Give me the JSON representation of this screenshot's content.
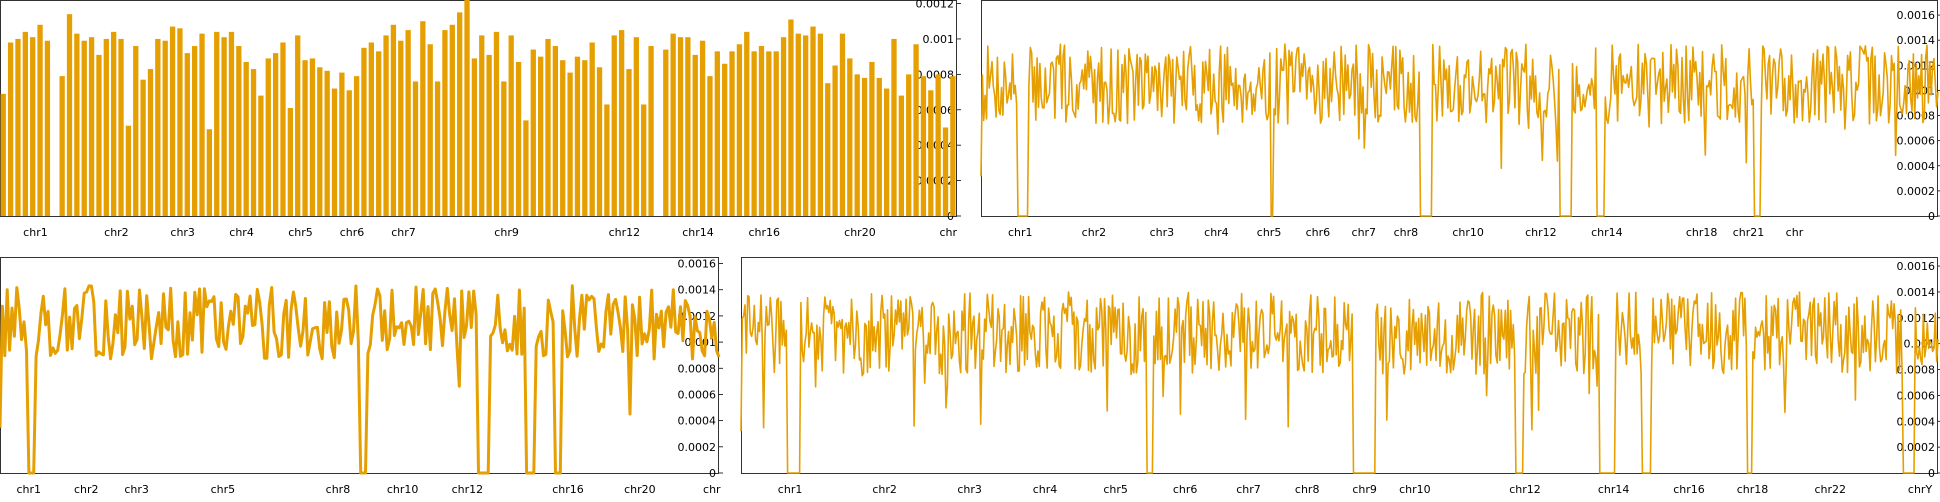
{
  "chart_data": [
    {
      "id": "panel-top-left",
      "type": "bar",
      "color": "#e69f00",
      "ylim": [
        0,
        0.00122
      ],
      "y_ticks": [
        "0",
        "0.0002",
        "0.0004",
        "0.0006",
        "0.0008",
        "0.001",
        "0.0012"
      ],
      "y_tick_values": [
        0,
        0.0002,
        0.0004,
        0.0006,
        0.0008,
        0.001,
        0.0012
      ],
      "x_labels": [
        "chr1",
        "chr2",
        "chr3",
        "chr4",
        "chr5",
        "chr6",
        "chr7",
        "chr9",
        "chr12",
        "chr14",
        "chr16",
        "chr20",
        "chr"
      ],
      "x_label_positions": [
        4,
        15,
        24,
        32,
        40,
        47,
        54,
        68,
        84,
        94,
        103,
        116,
        128
      ],
      "n_points": 130,
      "values": [
        0.00069,
        0.00098,
        0.001,
        0.00104,
        0.00101,
        0.00108,
        0.00099,
        0,
        0.00079,
        0.00114,
        0.00103,
        0.00099,
        0.00101,
        0.00091,
        0.001,
        0.00104,
        0.001,
        0.00051,
        0.00096,
        0.00077,
        0.00083,
        0.001,
        0.00099,
        0.00107,
        0.00106,
        0.00092,
        0.00096,
        0.00103,
        0.00049,
        0.00104,
        0.00101,
        0.00104,
        0.00096,
        0.00087,
        0.00083,
        0.00068,
        0.00089,
        0.00092,
        0.00098,
        0.00061,
        0.00102,
        0.00088,
        0.00089,
        0.00084,
        0.00082,
        0.00072,
        0.00081,
        0.00071,
        0.00079,
        0.00095,
        0.00098,
        0.00093,
        0.00102,
        0.00108,
        0.00099,
        0.00105,
        0.00076,
        0.0011,
        0.00097,
        0.00076,
        0.00105,
        0.00108,
        0.00115,
        0.00126,
        0.00089,
        0.00102,
        0.00091,
        0.00104,
        0.00076,
        0.00102,
        0.00087,
        0.00054,
        0.00094,
        0.0009,
        0.001,
        0.00096,
        0.00088,
        0.00081,
        0.0009,
        0.00088,
        0.00098,
        0.00084,
        0.00063,
        0.00102,
        0.00105,
        0.00083,
        0.00101,
        0.00063,
        0.00096,
        0.0,
        0.00094,
        0.00103,
        0.00101,
        0.00101,
        0.00091,
        0.00099,
        0.00079,
        0.00093,
        0.00086,
        0.00093,
        0.00097,
        0.00104,
        0.00093,
        0.00096,
        0.00093,
        0.00093,
        0.00101,
        0.00111,
        0.00103,
        0.00102,
        0.00107,
        0.00103,
        0.00075,
        0.00085,
        0.00103,
        0.00089,
        0.0008,
        0.00078,
        0.00087,
        0.00078,
        0.00072,
        0.001,
        0.00068,
        0.0008,
        0.00097,
        0.00079,
        0.00071,
        0.0008,
        0.0005,
        0.00079
      ]
    },
    {
      "id": "panel-top-right",
      "type": "line",
      "color": "#e69f00",
      "ylim": [
        0,
        0.00172
      ],
      "y_ticks": [
        "0",
        "0.0002",
        "0.0004",
        "0.0006",
        "0.0008",
        "0.001",
        "0.0012",
        "0.0014",
        "0.0016"
      ],
      "y_tick_values": [
        0,
        0.0002,
        0.0004,
        0.0006,
        0.0008,
        0.001,
        0.0012,
        0.0014,
        0.0016
      ],
      "x_labels": [
        "chr1",
        "chr2",
        "chr3",
        "chr4",
        "chr5",
        "chr6",
        "chr7",
        "chr8",
        "chr10",
        "chr12",
        "chr14",
        "chr18",
        "chr21",
        "chr"
      ],
      "x_label_positions": [
        0.041,
        0.118,
        0.189,
        0.246,
        0.301,
        0.352,
        0.4,
        0.444,
        0.509,
        0.585,
        0.654,
        0.753,
        0.802,
        0.85
      ],
      "n_points": 700,
      "base": 0.00105,
      "amplitude": 0.00032,
      "seed": 7,
      "dropouts": [
        [
          0.038,
          0.05
        ],
        [
          0.302,
          0.306
        ],
        [
          0.459,
          0.472
        ],
        [
          0.605,
          0.617
        ],
        [
          0.643,
          0.651
        ],
        [
          0.807,
          0.815
        ]
      ]
    },
    {
      "id": "panel-bottom-left",
      "type": "line",
      "color": "#e69f00",
      "line_width": 3,
      "ylim": [
        0,
        0.00165
      ],
      "y_ticks": [
        "0",
        "0.0002",
        "0.0004",
        "0.0006",
        "0.0008",
        "0.001",
        "0.0012",
        "0.0014",
        "0.0016"
      ],
      "y_tick_values": [
        0,
        0.0002,
        0.0004,
        0.0006,
        0.0008,
        0.001,
        0.0012,
        0.0014,
        0.0016
      ],
      "x_labels": [
        "chr1",
        "chr2",
        "chr3",
        "chr5",
        "chr8",
        "chr10",
        "chr12",
        "chr16",
        "chr20",
        "chr"
      ],
      "x_label_positions": [
        0.04,
        0.12,
        0.19,
        0.31,
        0.47,
        0.56,
        0.65,
        0.79,
        0.89,
        0.99
      ],
      "n_points": 300,
      "base": 0.00115,
      "amplitude": 0.00028,
      "seed": 13,
      "dropouts": [
        [
          0.04,
          0.05
        ],
        [
          0.5,
          0.51
        ],
        [
          0.665,
          0.68
        ],
        [
          0.73,
          0.745
        ],
        [
          0.77,
          0.78
        ]
      ]
    },
    {
      "id": "panel-bottom-right",
      "type": "line",
      "color": "#e69f00",
      "ylim": [
        0,
        0.00167
      ],
      "y_ticks": [
        "0",
        "0.0002",
        "0.0004",
        "0.0006",
        "0.0008",
        "0.001",
        "0.0012",
        "0.0014",
        "0.0016"
      ],
      "y_tick_values": [
        0,
        0.0002,
        0.0004,
        0.0006,
        0.0008,
        0.001,
        0.0012,
        0.0014,
        0.0016
      ],
      "x_labels": [
        "chr1",
        "chr2",
        "chr3",
        "chr4",
        "chr5",
        "chr6",
        "chr7",
        "chr8",
        "chr9",
        "chr10",
        "chr12",
        "chr14",
        "chr16",
        "chr18",
        "chr22",
        "chrY"
      ],
      "x_label_positions": [
        0.041,
        0.12,
        0.191,
        0.254,
        0.313,
        0.371,
        0.424,
        0.473,
        0.521,
        0.563,
        0.655,
        0.729,
        0.792,
        0.845,
        0.91,
        0.985
      ],
      "n_points": 900,
      "base": 0.00108,
      "amplitude": 0.00032,
      "seed": 29,
      "dropouts": [
        [
          0.038,
          0.05
        ],
        [
          0.339,
          0.344
        ],
        [
          0.511,
          0.53
        ],
        [
          0.647,
          0.654
        ],
        [
          0.717,
          0.73
        ],
        [
          0.753,
          0.76
        ],
        [
          0.84,
          0.845
        ],
        [
          0.97,
          0.98
        ]
      ]
    }
  ]
}
